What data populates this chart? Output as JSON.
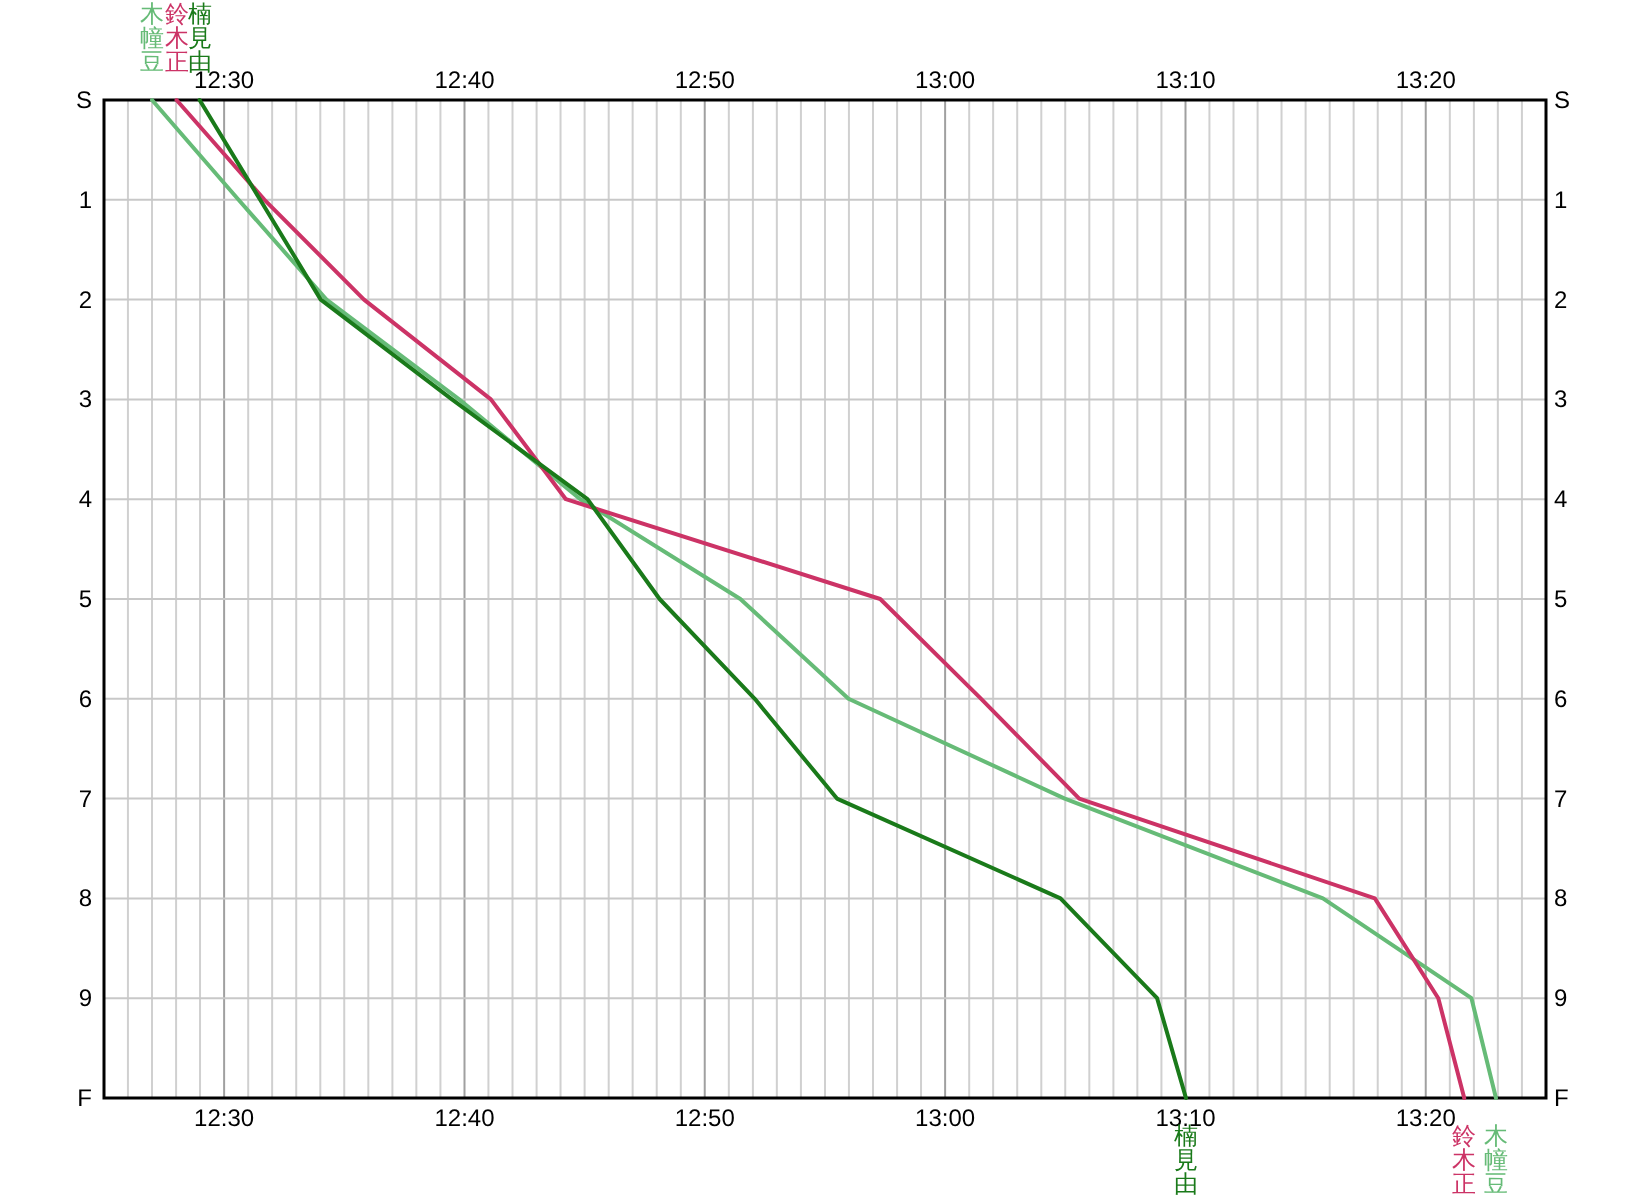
{
  "chart_data": {
    "type": "line",
    "xlim": [
      12.4167,
      13.4167
    ],
    "xticks": [
      {
        "value": 12.4333,
        "label": null
      },
      {
        "value": 12.45,
        "label": null
      },
      {
        "value": 12.4667,
        "label": null
      },
      {
        "value": 12.4833,
        "label": null
      },
      {
        "value": 12.5,
        "label": "12:30"
      },
      {
        "value": 12.5167,
        "label": null
      },
      {
        "value": 12.5333,
        "label": null
      },
      {
        "value": 12.55,
        "label": null
      },
      {
        "value": 12.5667,
        "label": null
      },
      {
        "value": 12.5833,
        "label": null
      },
      {
        "value": 12.6,
        "label": null
      },
      {
        "value": 12.6167,
        "label": null
      },
      {
        "value": 12.6333,
        "label": null
      },
      {
        "value": 12.65,
        "label": null
      },
      {
        "value": 12.6667,
        "label": "12:40"
      },
      {
        "value": 12.6833,
        "label": null
      },
      {
        "value": 12.7,
        "label": null
      },
      {
        "value": 12.7167,
        "label": null
      },
      {
        "value": 12.7333,
        "label": null
      },
      {
        "value": 12.75,
        "label": null
      },
      {
        "value": 12.7667,
        "label": null
      },
      {
        "value": 12.7833,
        "label": null
      },
      {
        "value": 12.8,
        "label": null
      },
      {
        "value": 12.8167,
        "label": null
      },
      {
        "value": 12.8333,
        "label": "12:50"
      },
      {
        "value": 12.85,
        "label": null
      },
      {
        "value": 12.8667,
        "label": null
      },
      {
        "value": 12.8833,
        "label": null
      },
      {
        "value": 12.9,
        "label": null
      },
      {
        "value": 12.9167,
        "label": null
      },
      {
        "value": 12.9333,
        "label": null
      },
      {
        "value": 12.95,
        "label": null
      },
      {
        "value": 12.9667,
        "label": null
      },
      {
        "value": 12.9833,
        "label": null
      },
      {
        "value": 13.0,
        "label": "13:00"
      },
      {
        "value": 13.0167,
        "label": null
      },
      {
        "value": 13.0333,
        "label": null
      },
      {
        "value": 13.05,
        "label": null
      },
      {
        "value": 13.0667,
        "label": null
      },
      {
        "value": 13.0833,
        "label": null
      },
      {
        "value": 13.1,
        "label": null
      },
      {
        "value": 13.1167,
        "label": null
      },
      {
        "value": 13.1333,
        "label": null
      },
      {
        "value": 13.15,
        "label": null
      },
      {
        "value": 13.1667,
        "label": "13:10"
      },
      {
        "value": 13.1833,
        "label": null
      },
      {
        "value": 13.2,
        "label": null
      },
      {
        "value": 13.2167,
        "label": null
      },
      {
        "value": 13.2333,
        "label": null
      },
      {
        "value": 13.25,
        "label": null
      },
      {
        "value": 13.2667,
        "label": null
      },
      {
        "value": 13.2833,
        "label": null
      },
      {
        "value": 13.3,
        "label": null
      },
      {
        "value": 13.3167,
        "label": null
      },
      {
        "value": 13.3333,
        "label": "13:20"
      },
      {
        "value": 13.35,
        "label": null
      },
      {
        "value": 13.3667,
        "label": null
      },
      {
        "value": 13.3833,
        "label": null
      },
      {
        "value": 13.4,
        "label": null
      }
    ],
    "x2lim": [
      12.4167,
      13.4167
    ],
    "x2ticks": [
      {
        "value": 12.5,
        "label": "12:30"
      },
      {
        "value": 12.6667,
        "label": "12:40"
      },
      {
        "value": 12.8333,
        "label": "12:50"
      },
      {
        "value": 13.0,
        "label": "13:00"
      },
      {
        "value": 13.1667,
        "label": "13:10"
      },
      {
        "value": 13.3333,
        "label": "13:20"
      }
    ],
    "ylim": [
      10,
      0
    ],
    "yticks": [
      {
        "value": 0,
        "label": "S"
      },
      1,
      2,
      3,
      4,
      5,
      6,
      7,
      8,
      9,
      {
        "value": 10,
        "label": "F"
      }
    ],
    "y2lim": [
      10,
      0
    ],
    "y2ticks": [
      {
        "value": 0,
        "label": "S"
      },
      1,
      2,
      3,
      4,
      5,
      6,
      7,
      8,
      9,
      {
        "value": 10,
        "label": "F"
      }
    ],
    "grid": true,
    "legend": false,
    "series": [
      {
        "name": "木幢豆",
        "color": "#66bb77",
        "x": [
          12.45,
          12.51,
          12.571,
          12.663,
          12.747,
          12.858,
          12.933,
          13.083,
          13.262,
          13.365,
          13.382
        ],
        "values": [
          0,
          1,
          2,
          3,
          4,
          5,
          6,
          7,
          8,
          9,
          10
        ]
      },
      {
        "name": "鈴木正",
        "color": "#cc3366",
        "x": [
          12.467,
          12.528,
          12.597,
          12.685,
          12.737,
          12.955,
          13.025,
          13.093,
          13.298,
          13.342,
          13.36
        ],
        "values": [
          0,
          1,
          2,
          3,
          4,
          5,
          6,
          7,
          8,
          9,
          10
        ]
      },
      {
        "name": "楠見由",
        "color": "#1a7a1a",
        "x": [
          12.483,
          12.525,
          12.567,
          12.658,
          12.752,
          12.802,
          12.868,
          12.925,
          13.08,
          13.147,
          13.167
        ],
        "values": [
          0,
          1,
          2,
          3,
          4,
          5,
          6,
          7,
          8,
          9,
          10
        ]
      }
    ]
  }
}
